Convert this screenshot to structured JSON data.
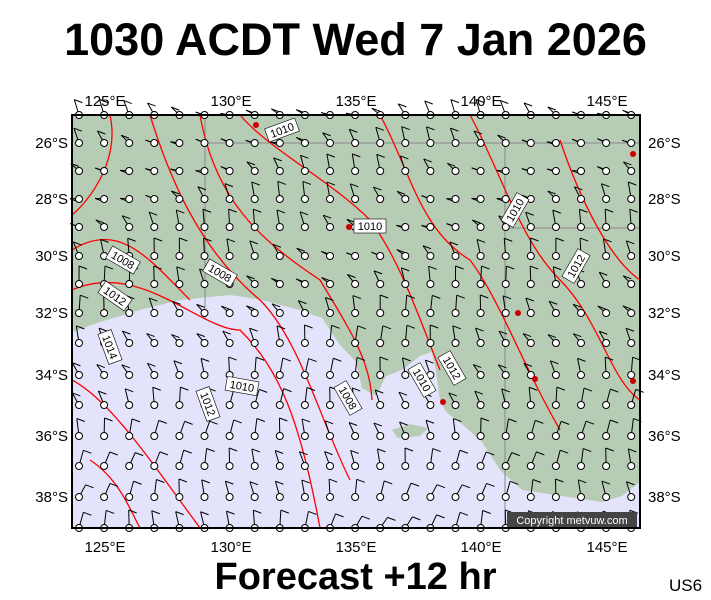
{
  "title": "1030 ACDT Wed 7 Jan 2026",
  "footer": "Forecast +12 hr",
  "code": "US6",
  "copyright": "Copyright metvuw.com",
  "map": {
    "type": "mean sea level pressure and wind barb forecast map",
    "longitude_ticks": [
      "125°E",
      "130°E",
      "135°E",
      "140°E",
      "145°E"
    ],
    "latitude_ticks": [
      "26°S",
      "28°S",
      "30°S",
      "32°S",
      "34°S",
      "36°S",
      "38°S"
    ],
    "isobar_labels": [
      "1010",
      "1010",
      "1008",
      "1008",
      "1012",
      "1014",
      "1010",
      "1012",
      "1008",
      "1010",
      "1012",
      "1010",
      "1012",
      "1010"
    ],
    "colors": {
      "land": "#b7ccb4",
      "sea": "#e3e3fb",
      "isobar": "#ff0000",
      "barb": "#000000",
      "low_marker": "#cc0000"
    }
  }
}
